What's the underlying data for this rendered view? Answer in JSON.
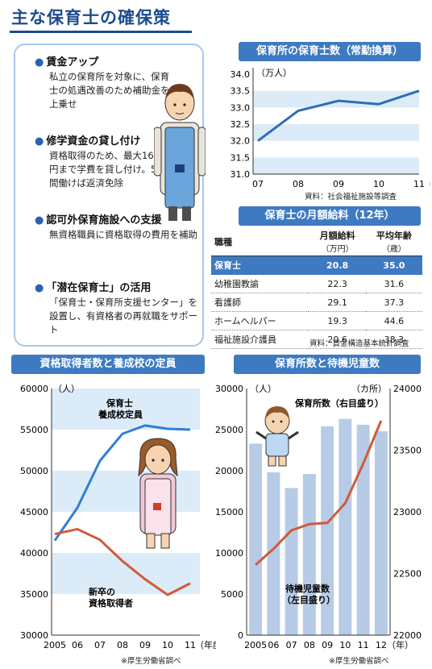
{
  "title": "主な保育士の確保策",
  "support": {
    "items": [
      {
        "title": "賃金アップ",
        "body": "私立の保育所を対象に、保育士の処遇改善のため補助金を上乗せ"
      },
      {
        "title": "修学資金の貸し付け",
        "body": "資格取得のため、最大160万円まで学費を貸し付け。5年間働けば返済免除"
      },
      {
        "title": "認可外保育施設への支援",
        "body": "無資格職員に資格取得の費用を補助"
      },
      {
        "title": "「潜在保育士」の活用",
        "body": "「保育士・保育所支援センター」を設置し、有資格者の再就職をサポート"
      }
    ]
  },
  "salary_table": {
    "title": "保育士の月額給料（12年）",
    "headers": {
      "job": "職種",
      "salary": "月額給料",
      "salary_unit": "（万円）",
      "age": "平均年齢",
      "age_unit": "（歳）"
    },
    "rows": [
      {
        "job": "保育士",
        "salary": "20.8",
        "age": "35.0"
      },
      {
        "job": "幼稚園教諭",
        "salary": "22.3",
        "age": "31.6"
      },
      {
        "job": "看護師",
        "salary": "29.1",
        "age": "37.3"
      },
      {
        "job": "ホームヘルパー",
        "salary": "19.3",
        "age": "44.6"
      },
      {
        "job": "福祉施設介護員",
        "salary": "20.6",
        "age": "38.3"
      }
    ],
    "source": "資料：賃金構造基本統計調査"
  },
  "chart_data": [
    {
      "type": "line",
      "title": "保育所の保育士数（常勤換算）",
      "ylabel": "（万人）",
      "xlabel": "（年）",
      "x": [
        "07",
        "08",
        "09",
        "10",
        "11"
      ],
      "yticks": [
        "31.0",
        "31.5",
        "32.0",
        "32.5",
        "33.0",
        "33.5",
        "34.0"
      ],
      "ylim": [
        31.0,
        34.0
      ],
      "series": [
        {
          "values": [
            32.0,
            32.9,
            33.2,
            33.1,
            33.5
          ]
        }
      ],
      "source": "資料：社会福祉施設等調査",
      "colors": {
        "line": "#2f6db5",
        "band": "#dcebf8"
      }
    },
    {
      "type": "line",
      "title": "資格取得者数と養成校の定員",
      "ylabel": "（人）",
      "xlabel": "（年度）",
      "x": [
        "2005",
        "06",
        "07",
        "08",
        "09",
        "10",
        "11"
      ],
      "yticks": [
        "30000",
        "35000",
        "40000",
        "45000",
        "50000",
        "55000",
        "60000"
      ],
      "ylim": [
        30000,
        60000
      ],
      "series": [
        {
          "name": "保育士養成校定員",
          "values": [
            41500,
            45500,
            51200,
            54500,
            55500,
            55100,
            55000
          ],
          "color": "#2f7fd6"
        },
        {
          "name": "新卒の資格取得者",
          "values": [
            42300,
            42900,
            41600,
            39000,
            36800,
            34900,
            36300
          ],
          "color": "#cf5a3a"
        }
      ],
      "series_labels": [
        {
          "line1": "保育士",
          "line2": "養成校定員"
        },
        {
          "line1": "新卒の",
          "line2": "資格取得者"
        }
      ],
      "source": "※厚生労働省調べ",
      "colors": {
        "band": "#dcebf8"
      }
    },
    {
      "type": "bar",
      "title": "保育所数と待機児童数",
      "ylabel_left": "（人）",
      "ylabel_right": "（カ所）",
      "xlabel": "（年）",
      "x": [
        "2005",
        "06",
        "07",
        "08",
        "09",
        "10",
        "11",
        "12"
      ],
      "yticks_left": [
        "0",
        "5000",
        "10000",
        "15000",
        "20000",
        "25000",
        "30000"
      ],
      "yticks_right": [
        "22000",
        "22500",
        "23000",
        "23500",
        "24000"
      ],
      "ylim_left": [
        0,
        30000
      ],
      "ylim_right": [
        22000,
        24000
      ],
      "series": [
        {
          "name": "待機児童数（左目盛り）",
          "type": "bar",
          "axis": "left",
          "values": [
            23300,
            19800,
            17900,
            19600,
            25400,
            26300,
            25600,
            24800
          ],
          "color": "#b7cbe7"
        },
        {
          "name": "保育所数（右目盛り）",
          "type": "line",
          "axis": "right",
          "values": [
            22570,
            22700,
            22850,
            22900,
            22910,
            23070,
            23390,
            23740
          ],
          "color": "#cf5a3a"
        }
      ],
      "series_labels": [
        {
          "line1": "待機児童数",
          "line2": "（左目盛り）"
        },
        {
          "line1": "保育所数（右目盛り）",
          "line2": ""
        }
      ],
      "source": "※厚生労働省調べ"
    }
  ]
}
